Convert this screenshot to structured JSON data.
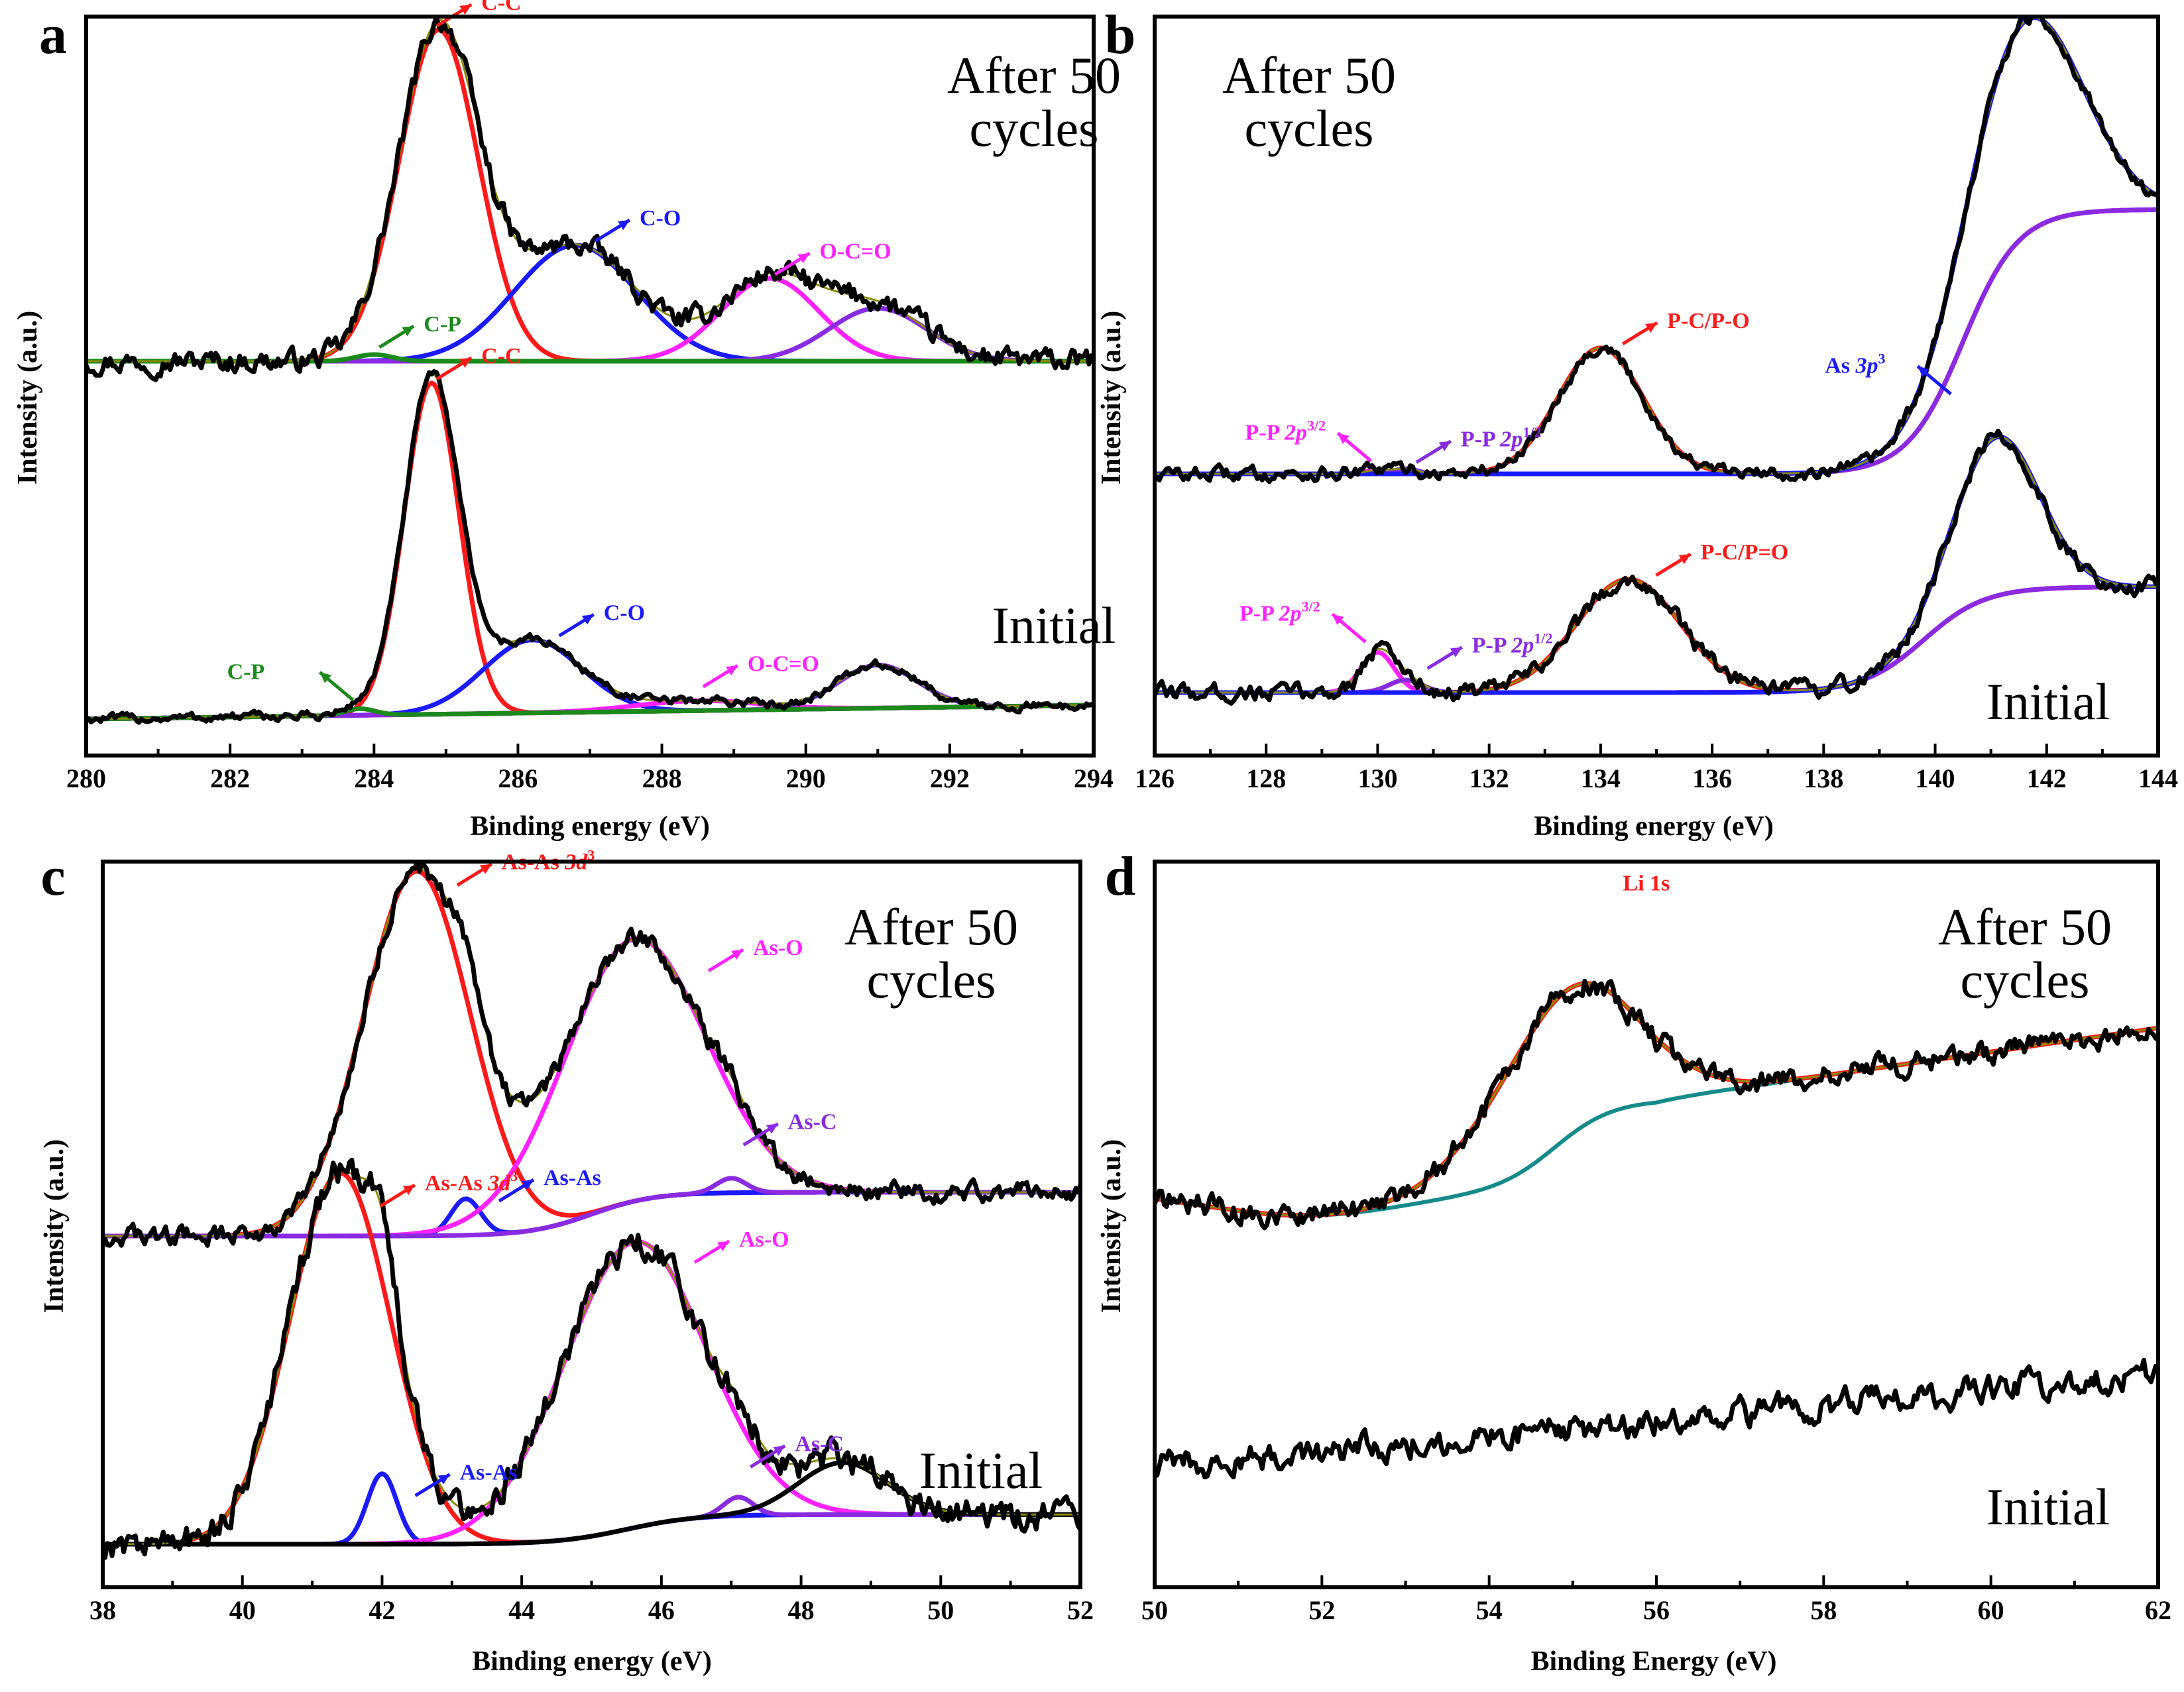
{
  "colors": {
    "raw": "#000000",
    "envelope": "#8b8b00",
    "background": "#148a8a",
    "red": "#ff1a1a",
    "blue": "#1a1aff",
    "magenta": "#ff22ff",
    "violet": "#8a2be2",
    "green": "#1a8a1a"
  },
  "chart_data": [
    {
      "panel": "a",
      "type": "line",
      "xlabel": "Binding energy (eV)",
      "ylabel": "Intensity (a.u.)",
      "xlim": [
        280,
        294
      ],
      "xticks": [
        "280",
        "282",
        "284",
        "286",
        "288",
        "290",
        "292",
        "294"
      ],
      "grid": false,
      "traces": [
        {
          "label": "After 50 cycles",
          "baseline": 0.0,
          "slope": 0.0,
          "noise": 0.025,
          "peaks": [
            {
              "name": "C-C",
              "center": 284.9,
              "height": 1.0,
              "fwhm": 1.3,
              "color": "red"
            },
            {
              "name": "C-O",
              "center": 286.8,
              "height": 0.35,
              "fwhm": 2.0,
              "color": "blue"
            },
            {
              "name": "O-C=O",
              "center": 289.5,
              "height": 0.25,
              "fwhm": 1.6,
              "color": "magenta"
            },
            {
              "name": "",
              "center": 291.0,
              "height": 0.16,
              "fwhm": 1.6,
              "color": "violet"
            },
            {
              "name": "C-P",
              "center": 284.0,
              "height": 0.02,
              "fwhm": 0.6,
              "color": "green"
            }
          ]
        },
        {
          "label": "Initial",
          "baseline": 0.0,
          "slope": 0.003,
          "noise": 0.01,
          "peaks": [
            {
              "name": "C-C",
              "center": 284.8,
              "height": 1.0,
              "fwhm": 0.9,
              "color": "red"
            },
            {
              "name": "C-O",
              "center": 286.2,
              "height": 0.22,
              "fwhm": 1.6,
              "color": "blue"
            },
            {
              "name": "O-C=O",
              "center": 288.5,
              "height": 0.03,
              "fwhm": 2.0,
              "color": "magenta"
            },
            {
              "name": "",
              "center": 291.0,
              "height": 0.13,
              "fwhm": 1.3,
              "color": "violet"
            },
            {
              "name": "C-P",
              "center": 283.8,
              "height": 0.02,
              "fwhm": 0.5,
              "color": "green"
            }
          ]
        }
      ],
      "annotations": [
        {
          "text": "C-C",
          "color": "red",
          "x": 284.8,
          "y": 1.0,
          "offset": "upper-right",
          "trace": 0
        },
        {
          "text": "C-O",
          "color": "blue",
          "x": 287.0,
          "y": 0.35,
          "offset": "upper-right",
          "trace": 0
        },
        {
          "text": "O-C=O",
          "color": "magenta",
          "x": 289.5,
          "y": 0.25,
          "offset": "upper-right",
          "trace": 0
        },
        {
          "text": "C-P",
          "color": "green",
          "x": 284.0,
          "y": 0.03,
          "offset": "upper-right",
          "trace": 0
        },
        {
          "text": "C-C",
          "color": "red",
          "x": 284.8,
          "y": 1.0,
          "offset": "upper-right",
          "trace": 1
        },
        {
          "text": "C-O",
          "color": "blue",
          "x": 286.5,
          "y": 0.22,
          "offset": "upper-right",
          "trace": 1
        },
        {
          "text": "O-C=O",
          "color": "magenta",
          "x": 288.5,
          "y": 0.06,
          "offset": "upper-right",
          "trace": 1
        },
        {
          "text": "C-P",
          "color": "green",
          "x": 283.8,
          "y": 0.03,
          "offset": "upper-left",
          "trace": 1
        }
      ]
    },
    {
      "panel": "b",
      "type": "line",
      "xlabel": "Binding energy (eV)",
      "ylabel": "Intensity (a.u.)",
      "xlim": [
        126,
        144
      ],
      "xticks": [
        "126",
        "128",
        "130",
        "132",
        "134",
        "136",
        "138",
        "140",
        "142",
        "144"
      ],
      "grid": false,
      "traces": [
        {
          "label": "After 50 cycles",
          "baseline": 0.0,
          "slope": 0.0,
          "noise": 0.02,
          "step": {
            "center": 140.5,
            "height": 1.05,
            "width": 1.0
          },
          "peaks": [
            {
              "name": "P-C/P-O",
              "center": 134.0,
              "height": 0.5,
              "fwhm": 1.8,
              "color": "red"
            },
            {
              "name": "P-P 2p3/2",
              "center": 130.0,
              "height": 0.015,
              "fwhm": 0.5,
              "color": "magenta"
            },
            {
              "name": "P-P 2p1/2",
              "center": 130.5,
              "height": 0.02,
              "fwhm": 0.5,
              "color": "violet"
            },
            {
              "name": "As 3p3",
              "center": 141.6,
              "height": 0.85,
              "fwhm": 2.4,
              "color": "blue"
            }
          ]
        },
        {
          "label": "Initial",
          "baseline": 0.0,
          "slope": 0.0,
          "noise": 0.025,
          "step": {
            "center": 139.8,
            "height": 0.42,
            "width": 1.1
          },
          "peaks": [
            {
              "name": "P-C/P=O",
              "center": 134.5,
              "height": 0.45,
              "fwhm": 2.2,
              "color": "red"
            },
            {
              "name": "P-P 2p3/2",
              "center": 130.0,
              "height": 0.16,
              "fwhm": 0.7,
              "color": "magenta"
            },
            {
              "name": "P-P 2p1/2",
              "center": 130.5,
              "height": 0.05,
              "fwhm": 0.7,
              "color": "violet"
            },
            {
              "name": "As 3p3",
              "center": 141.1,
              "height": 0.63,
              "fwhm": 1.8,
              "color": "blue"
            }
          ]
        }
      ],
      "annotations": [
        {
          "text": "P-C/P-O",
          "color": "red",
          "x": 134.3,
          "y": 0.5,
          "offset": "upper-right",
          "trace": 0
        },
        {
          "text": "P-P 2p3/2",
          "color": "magenta",
          "x": 130.0,
          "y": 0.03,
          "offset": "upper-left",
          "trace": 0
        },
        {
          "text": "P-P 2p1/2",
          "color": "violet",
          "x": 130.6,
          "y": 0.03,
          "offset": "upper-right",
          "trace": 0
        },
        {
          "text": "As 3p3",
          "color": "blue",
          "x": 140.8,
          "y": 1.3,
          "offset": "upper-left",
          "trace": 0
        },
        {
          "text": "P-C/P=O",
          "color": "red",
          "x": 134.9,
          "y": 0.45,
          "offset": "upper-right",
          "trace": 1
        },
        {
          "text": "P-P 2p3/2",
          "color": "magenta",
          "x": 129.9,
          "y": 0.18,
          "offset": "upper-left",
          "trace": 1
        },
        {
          "text": "P-P 2p1/2",
          "color": "violet",
          "x": 130.8,
          "y": 0.08,
          "offset": "upper-right",
          "trace": 1
        },
        {
          "text": "As 3p3",
          "color": "blue",
          "x": 140.4,
          "y": 0.85,
          "offset": "upper-left",
          "trace": 1
        }
      ]
    },
    {
      "panel": "c",
      "type": "line",
      "xlabel": "Binding energy (eV)",
      "ylabel": "Intensity (a.u.)",
      "xlim": [
        38,
        52
      ],
      "xticks": [
        "38",
        "40",
        "42",
        "44",
        "46",
        "48",
        "50",
        "52"
      ],
      "grid": false,
      "traces": [
        {
          "label": "After 50 cycles",
          "baseline": 0.0,
          "slope": 0.0,
          "noise": 0.02,
          "step": {
            "center": 45.0,
            "height": 0.12,
            "width": 0.9
          },
          "peaks": [
            {
              "name": "As-As 3d3",
              "center": 42.5,
              "height": 1.0,
              "fwhm": 1.8,
              "color": "red"
            },
            {
              "name": "As-As",
              "center": 43.2,
              "height": 0.1,
              "fwhm": 0.5,
              "color": "blue"
            },
            {
              "name": "As-O",
              "center": 45.6,
              "height": 0.72,
              "fwhm": 2.4,
              "color": "magenta"
            },
            {
              "name": "As-C",
              "center": 47.0,
              "height": 0.04,
              "fwhm": 0.5,
              "color": "violet"
            }
          ]
        },
        {
          "label": "Initial",
          "baseline": 0.0,
          "slope": 0.0,
          "noise": 0.03,
          "step": {
            "center": 45.5,
            "height": 0.08,
            "width": 1.0
          },
          "peaks": [
            {
              "name": "As-As 3d3",
              "center": 41.4,
              "height": 1.0,
              "fwhm": 1.7,
              "color": "red"
            },
            {
              "name": "As-As",
              "center": 42.0,
              "height": 0.19,
              "fwhm": 0.5,
              "color": "blue"
            },
            {
              "name": "As-O",
              "center": 45.6,
              "height": 0.77,
              "fwhm": 2.4,
              "color": "magenta"
            },
            {
              "name": "As-C",
              "center": 47.1,
              "height": 0.05,
              "fwhm": 0.5,
              "color": "violet"
            },
            {
              "name": "",
              "center": 48.6,
              "height": 0.14,
              "fwhm": 1.5,
              "color": "raw"
            }
          ]
        }
      ],
      "annotations": [
        {
          "text": "As-As 3d3",
          "color": "red",
          "x": 43.0,
          "y": 0.95,
          "offset": "upper-right",
          "trace": 0
        },
        {
          "text": "As-O",
          "color": "magenta",
          "x": 46.6,
          "y": 0.6,
          "offset": "upper-right",
          "trace": 0
        },
        {
          "text": "As-As",
          "color": "blue",
          "x": 43.6,
          "y": 0.08,
          "offset": "upper-right",
          "trace": 0
        },
        {
          "text": "As-C",
          "color": "violet",
          "x": 47.1,
          "y": 0.12,
          "offset": "upper-right",
          "trace": 0
        },
        {
          "text": "As-As 3d3",
          "color": "red",
          "x": 41.9,
          "y": 0.9,
          "offset": "upper-right",
          "trace": 1
        },
        {
          "text": "As-O",
          "color": "magenta",
          "x": 46.4,
          "y": 0.68,
          "offset": "upper-right",
          "trace": 1
        },
        {
          "text": "As-As",
          "color": "blue",
          "x": 42.4,
          "y": 0.12,
          "offset": "upper-right",
          "trace": 1
        },
        {
          "text": "As-C",
          "color": "violet",
          "x": 47.2,
          "y": 0.12,
          "offset": "upper-right",
          "trace": 1
        }
      ]
    },
    {
      "panel": "d",
      "type": "line",
      "xlabel": "Binding Energy (eV)",
      "ylabel": "Intensity (a.u.)",
      "xlim": [
        50,
        62
      ],
      "xticks": [
        "50",
        "52",
        "54",
        "56",
        "58",
        "60",
        "62"
      ],
      "grid": false,
      "traces": [
        {
          "label": "After 50 cycles",
          "baseline": 0.1,
          "slope": 0.0,
          "noise": 0.025,
          "dip": {
            "center": 51.8,
            "depth": 0.07,
            "width": 1.2
          },
          "step": {
            "center": 54.8,
            "height": 0.26,
            "width": 0.7
          },
          "ramp": {
            "start": 56.0,
            "slope": 0.034
          },
          "peaks": [
            {
              "name": "Li 1s",
              "center": 54.9,
              "height": 0.42,
              "fwhm": 2.0,
              "color": "red"
            }
          ]
        },
        {
          "label": "Initial",
          "baseline": 0.05,
          "slope": 0.022,
          "noise": 0.03,
          "raw_only": true,
          "peaks": []
        }
      ],
      "annotations": [
        {
          "text": "Li 1s",
          "color": "red",
          "x": 55.6,
          "y": 0.62,
          "offset": "label-only",
          "trace": 0
        }
      ]
    }
  ]
}
